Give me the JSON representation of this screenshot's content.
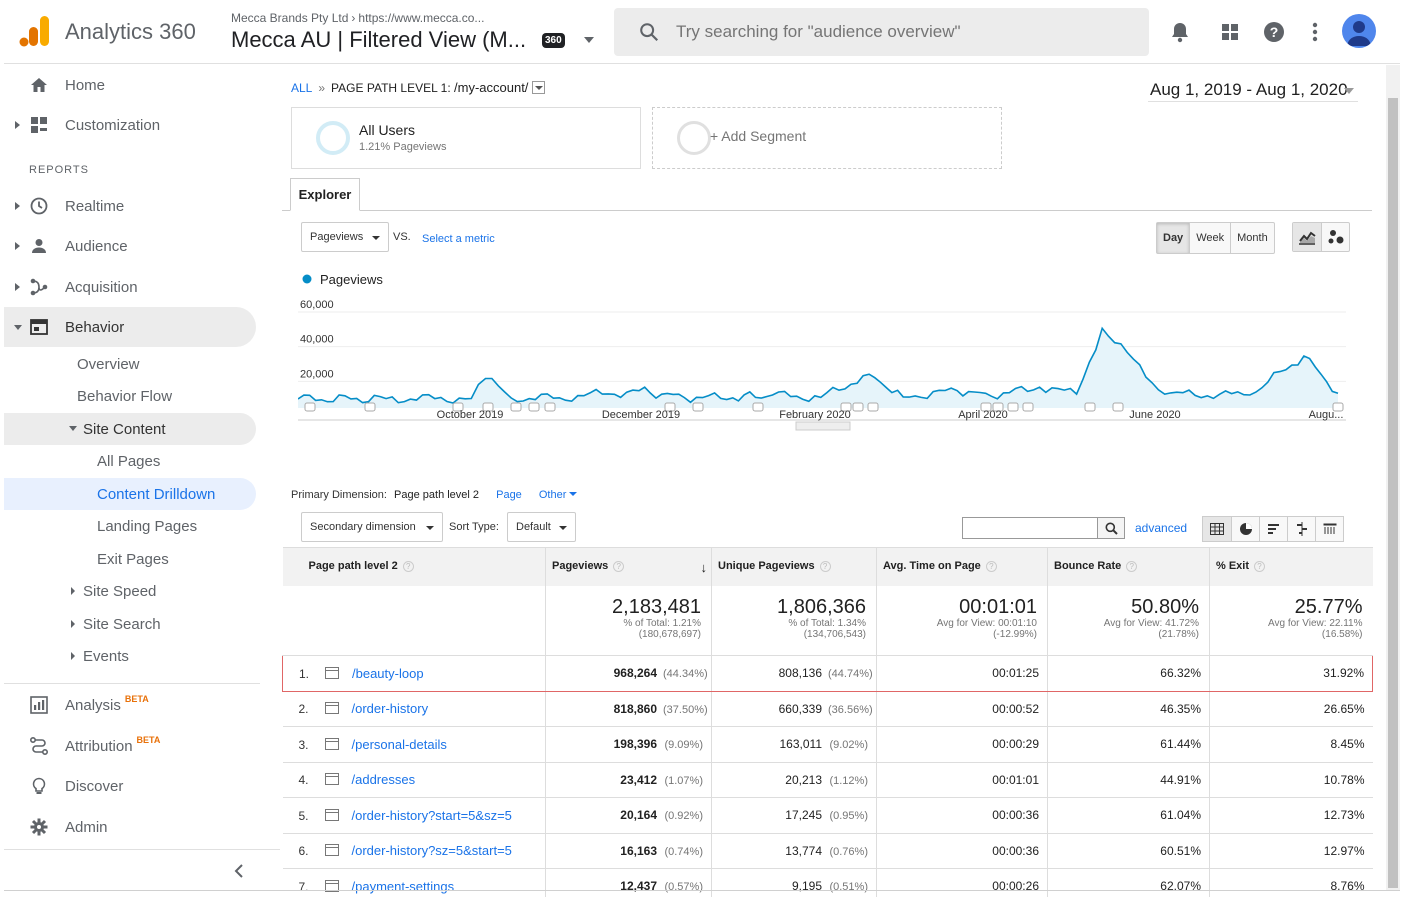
{
  "app": {
    "name": "Analytics 360"
  },
  "account": {
    "org": "Mecca Brands Pty Ltd",
    "url": "https://www.mecca.co...",
    "view": "Mecca AU | Filtered View (M...",
    "badge": "360"
  },
  "search": {
    "placeholder": "Try searching for \"audience overview\""
  },
  "sidebar": {
    "home": "Home",
    "customization": "Customization",
    "reports_header": "REPORTS",
    "realtime": "Realtime",
    "audience": "Audience",
    "acquisition": "Acquisition",
    "behavior": "Behavior",
    "overview": "Overview",
    "behavior_flow": "Behavior Flow",
    "site_content": "Site Content",
    "all_pages": "All Pages",
    "content_drilldown": "Content Drilldown",
    "landing_pages": "Landing Pages",
    "exit_pages": "Exit Pages",
    "site_speed": "Site Speed",
    "site_search": "Site Search",
    "events": "Events",
    "analysis": "Analysis",
    "attribution": "Attribution",
    "beta": "BETA",
    "discover": "Discover",
    "admin": "Admin"
  },
  "breadcrumb": {
    "all": "ALL",
    "sep": "»",
    "level": "PAGE PATH LEVEL 1:",
    "path": "/my-account/"
  },
  "date_range": "Aug 1, 2019 - Aug 1, 2020",
  "segments": {
    "all_users": "All Users",
    "all_users_sub": "1.21% Pageviews",
    "add_segment": "+ Add Segment"
  },
  "explorer_tab": "Explorer",
  "metric_select": "Pageviews",
  "vs": "VS.",
  "select_metric": "Select a metric",
  "granularity": [
    "Day",
    "Week",
    "Month"
  ],
  "chart_data": {
    "type": "line",
    "series": [
      {
        "name": "Pageviews",
        "color": "#058dc7"
      }
    ],
    "y_ticks": [
      "60,000",
      "40,000",
      "20,000"
    ],
    "ylim": [
      0,
      60000
    ],
    "x_ticks": [
      "October 2019",
      "December 2019",
      "February 2020",
      "April 2020",
      "June 2020",
      "Augu..."
    ],
    "x": [
      "2019-08-01",
      "2019-09-01",
      "2019-10-01",
      "2019-10-06",
      "2019-10-15",
      "2019-11-01",
      "2019-11-29",
      "2019-12-15",
      "2020-01-01",
      "2020-01-15",
      "2020-02-01",
      "2020-02-18",
      "2020-03-01",
      "2020-03-20",
      "2020-04-01",
      "2020-04-18",
      "2020-05-01",
      "2020-05-10",
      "2020-06-01",
      "2020-07-01",
      "2020-07-20",
      "2020-08-01"
    ],
    "values": [
      5200,
      5400,
      5500,
      17000,
      5800,
      5900,
      10000,
      6000,
      5900,
      7500,
      6100,
      19500,
      6400,
      10000,
      6800,
      12000,
      8000,
      46000,
      8000,
      7500,
      30000,
      8500
    ],
    "annotation_count": 20
  },
  "primary_dimension": {
    "label": "Primary Dimension:",
    "current": "Page path level 2",
    "page": "Page",
    "other": "Other"
  },
  "secondary_dimension": "Secondary dimension",
  "sort_type": {
    "label": "Sort Type:",
    "value": "Default"
  },
  "advanced": "advanced",
  "table": {
    "headers": [
      "Page path level 2",
      "Pageviews",
      "Unique Pageviews",
      "Avg. Time on Page",
      "Bounce Rate",
      "% Exit"
    ],
    "totals": [
      {
        "value": "2,183,481",
        "sub1": "% of Total: 1.21%",
        "sub2": "(180,678,697)"
      },
      {
        "value": "1,806,366",
        "sub1": "% of Total: 1.34%",
        "sub2": "(134,706,543)"
      },
      {
        "value": "00:01:01",
        "sub1": "Avg for View: 00:01:10",
        "sub2": "(-12.99%)"
      },
      {
        "value": "50.80%",
        "sub1": "Avg for View: 41.72%",
        "sub2": "(21.78%)"
      },
      {
        "value": "25.77%",
        "sub1": "Avg for View: 22.11%",
        "sub2": "(16.58%)"
      }
    ],
    "rows": [
      {
        "n": "1.",
        "path": "/beauty-loop",
        "pv": "968,264",
        "pv_pct": "(44.34%)",
        "upv": "808,136",
        "upv_pct": "(44.74%)",
        "time": "00:01:25",
        "bounce": "66.32%",
        "exit": "31.92%"
      },
      {
        "n": "2.",
        "path": "/order-history",
        "pv": "818,860",
        "pv_pct": "(37.50%)",
        "upv": "660,339",
        "upv_pct": "(36.56%)",
        "time": "00:00:52",
        "bounce": "46.35%",
        "exit": "26.65%"
      },
      {
        "n": "3.",
        "path": "/personal-details",
        "pv": "198,396",
        "pv_pct": "(9.09%)",
        "upv": "163,011",
        "upv_pct": "(9.02%)",
        "time": "00:00:29",
        "bounce": "61.44%",
        "exit": "8.45%"
      },
      {
        "n": "4.",
        "path": "/addresses",
        "pv": "23,412",
        "pv_pct": "(1.07%)",
        "upv": "20,213",
        "upv_pct": "(1.12%)",
        "time": "00:01:01",
        "bounce": "44.91%",
        "exit": "10.78%"
      },
      {
        "n": "5.",
        "path": "/order-history?start=5&sz=5",
        "pv": "20,164",
        "pv_pct": "(0.92%)",
        "upv": "17,245",
        "upv_pct": "(0.95%)",
        "time": "00:00:36",
        "bounce": "61.04%",
        "exit": "12.73%"
      },
      {
        "n": "6.",
        "path": "/order-history?sz=5&start=5",
        "pv": "16,163",
        "pv_pct": "(0.74%)",
        "upv": "13,774",
        "upv_pct": "(0.76%)",
        "time": "00:00:36",
        "bounce": "60.51%",
        "exit": "12.97%"
      },
      {
        "n": "7.",
        "path": "/payment-settings",
        "pv": "12,437",
        "pv_pct": "(0.57%)",
        "upv": "9,195",
        "upv_pct": "(0.51%)",
        "time": "00:00:26",
        "bounce": "62.07%",
        "exit": "8.76%"
      }
    ]
  },
  "colors": {
    "accent": "#1a73e8",
    "series": "#058dc7",
    "logo_orange": "#f9ab00",
    "logo_dark": "#e37400",
    "highlight_row": "#e06666"
  }
}
